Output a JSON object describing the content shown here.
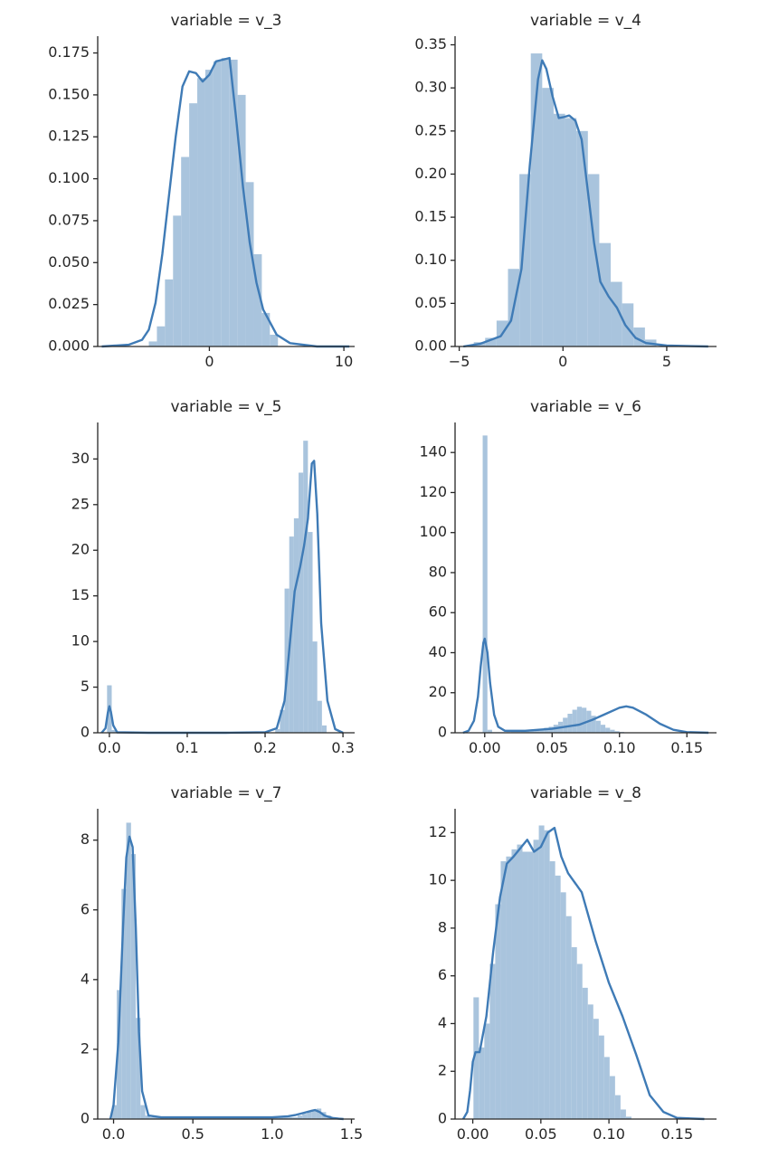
{
  "chart_data": [
    {
      "type": "histogram",
      "title": "variable = v_3",
      "xlim": [
        -8.3,
        10.8
      ],
      "ylim": [
        0,
        0.185
      ],
      "xticks": [
        0,
        10
      ],
      "xtick_labels": [
        "0",
        "10"
      ],
      "yticks": [
        0,
        0.025,
        0.05,
        0.075,
        0.1,
        0.125,
        0.15,
        0.175
      ],
      "ytick_labels": [
        "0.000",
        "0.025",
        "0.050",
        "0.075",
        "0.100",
        "0.125",
        "0.150",
        "0.175"
      ],
      "bins": {
        "start": -4.5,
        "width": 0.6,
        "heights": [
          0.003,
          0.012,
          0.04,
          0.078,
          0.113,
          0.145,
          0.16,
          0.165,
          0.17,
          0.172,
          0.171,
          0.15,
          0.098,
          0.055,
          0.02,
          0.007
        ]
      },
      "kde": {
        "x": [
          -8,
          -6,
          -5,
          -4.5,
          -4,
          -3.5,
          -3,
          -2.5,
          -2,
          -1.5,
          -1,
          -0.5,
          0,
          0.5,
          1,
          1.5,
          2,
          2.5,
          3,
          3.5,
          4,
          5,
          6,
          8,
          10.4
        ],
        "y": [
          0,
          0.001,
          0.004,
          0.01,
          0.026,
          0.055,
          0.09,
          0.125,
          0.155,
          0.164,
          0.163,
          0.158,
          0.162,
          0.17,
          0.171,
          0.172,
          0.135,
          0.095,
          0.062,
          0.038,
          0.022,
          0.007,
          0.002,
          0,
          0
        ]
      }
    },
    {
      "type": "histogram",
      "title": "variable = v_4",
      "xlim": [
        -5.2,
        7.4
      ],
      "ylim": [
        0,
        0.36
      ],
      "xticks": [
        -5,
        0,
        5
      ],
      "xtick_labels": [
        "−5",
        "0",
        "5"
      ],
      "yticks": [
        0,
        0.05,
        0.1,
        0.15,
        0.2,
        0.25,
        0.3,
        0.35
      ],
      "ytick_labels": [
        "0.00",
        "0.05",
        "0.10",
        "0.15",
        "0.20",
        "0.25",
        "0.30",
        "0.35"
      ],
      "bins": {
        "start": -4.3,
        "width": 0.55,
        "heights": [
          0.005,
          0.01,
          0.03,
          0.09,
          0.2,
          0.34,
          0.3,
          0.27,
          0.265,
          0.25,
          0.2,
          0.12,
          0.075,
          0.05,
          0.022,
          0.008
        ]
      },
      "kde": {
        "x": [
          -4.8,
          -4,
          -3,
          -2.5,
          -2,
          -1.6,
          -1.2,
          -1,
          -0.8,
          -0.5,
          -0.2,
          0,
          0.3,
          0.6,
          0.9,
          1.2,
          1.5,
          1.8,
          2.2,
          2.6,
          3,
          3.5,
          4,
          5,
          7
        ],
        "y": [
          0,
          0.003,
          0.012,
          0.03,
          0.09,
          0.21,
          0.31,
          0.332,
          0.322,
          0.29,
          0.265,
          0.266,
          0.268,
          0.262,
          0.24,
          0.18,
          0.12,
          0.075,
          0.058,
          0.045,
          0.025,
          0.01,
          0.004,
          0.001,
          0
        ]
      }
    },
    {
      "type": "histogram",
      "title": "variable = v_5",
      "xlim": [
        -0.015,
        0.315
      ],
      "ylim": [
        0,
        34
      ],
      "xticks": [
        0,
        0.1,
        0.2,
        0.3
      ],
      "xtick_labels": [
        "0.0",
        "0.1",
        "0.2",
        "0.3"
      ],
      "yticks": [
        0,
        5,
        10,
        15,
        20,
        25,
        30
      ],
      "ytick_labels": [
        "0",
        "5",
        "10",
        "15",
        "20",
        "25",
        "30"
      ],
      "bins": {
        "start": -0.003,
        "width": 0.006,
        "heights": [
          5.2,
          0.3,
          0,
          0,
          0,
          0,
          0,
          0,
          0,
          0,
          0,
          0,
          0,
          0,
          0,
          0,
          0,
          0,
          0,
          0,
          0,
          0,
          0,
          0,
          0,
          0,
          0,
          0,
          0,
          0,
          0,
          0,
          0,
          0,
          0,
          0,
          0.4,
          2.5,
          15.8,
          21.5,
          23.5,
          28.5,
          32,
          22,
          10,
          3.5,
          0.8,
          0
        ]
      },
      "kde": {
        "x": [
          -0.01,
          -0.005,
          -0.002,
          0,
          0.002,
          0.005,
          0.01,
          0.05,
          0.1,
          0.15,
          0.2,
          0.215,
          0.225,
          0.232,
          0.238,
          0.245,
          0.25,
          0.255,
          0.26,
          0.263,
          0.267,
          0.272,
          0.28,
          0.29,
          0.3
        ],
        "y": [
          0,
          0.5,
          2.2,
          2.9,
          2.3,
          0.8,
          0.05,
          0,
          0,
          0,
          0.05,
          0.5,
          3.5,
          10,
          15.5,
          18.2,
          20.5,
          23.5,
          29.5,
          29.8,
          24,
          12,
          3.5,
          0.4,
          0
        ]
      }
    },
    {
      "type": "histogram",
      "title": "variable = v_6",
      "xlim": [
        -0.022,
        0.172
      ],
      "ylim": [
        0,
        155
      ],
      "xticks": [
        0,
        0.05,
        0.1,
        0.15
      ],
      "xtick_labels": [
        "0.00",
        "0.05",
        "0.10",
        "0.15"
      ],
      "yticks": [
        0,
        20,
        40,
        60,
        80,
        100,
        120,
        140
      ],
      "ytick_labels": [
        "0",
        "20",
        "40",
        "60",
        "80",
        "100",
        "120",
        "140"
      ],
      "bins": {
        "start": -0.0015,
        "width": 0.0035,
        "heights": [
          148.5,
          1.5,
          0.3,
          0.3,
          0.3,
          0.4,
          0.5,
          0.6,
          0.8,
          1,
          1.3,
          1.6,
          2,
          2.5,
          3,
          4,
          5.5,
          7.5,
          9.5,
          11.5,
          13,
          12.5,
          11,
          8.5,
          6,
          4,
          2.5,
          1.5,
          0.8,
          0.4,
          0.2,
          0.1,
          0.1,
          0,
          0,
          0,
          0,
          0,
          0,
          0,
          0,
          0,
          0,
          0,
          0,
          0,
          0,
          0
        ]
      },
      "kde": {
        "x": [
          -0.016,
          -0.012,
          -0.008,
          -0.005,
          -0.003,
          -0.001,
          0,
          0.002,
          0.004,
          0.007,
          0.01,
          0.015,
          0.03,
          0.05,
          0.07,
          0.08,
          0.09,
          0.1,
          0.105,
          0.11,
          0.12,
          0.13,
          0.14,
          0.15,
          0.166
        ],
        "y": [
          0,
          1,
          6,
          18,
          33,
          45,
          47,
          40,
          25,
          9,
          3,
          1,
          1,
          2,
          4,
          6.5,
          9.5,
          12.5,
          13.2,
          12.5,
          9,
          4.5,
          1.5,
          0.3,
          0
        ]
      }
    },
    {
      "type": "histogram",
      "title": "variable = v_7",
      "xlim": [
        -0.1,
        1.52
      ],
      "ylim": [
        0,
        8.9
      ],
      "xticks": [
        0,
        0.5,
        1,
        1.5
      ],
      "xtick_labels": [
        "0.0",
        "0.5",
        "1.0",
        "1.5"
      ],
      "yticks": [
        0,
        2,
        4,
        6,
        8
      ],
      "ytick_labels": [
        "0",
        "2",
        "4",
        "6",
        "8"
      ],
      "bins": {
        "start": -0.01,
        "width": 0.03,
        "heights": [
          0.4,
          3.7,
          6.6,
          8.5,
          7.6,
          2.9,
          0.4,
          0.1,
          0.05,
          0.05,
          0.05,
          0.05,
          0.05,
          0.05,
          0.05,
          0.05,
          0.05,
          0.05,
          0.05,
          0.05,
          0.05,
          0.05,
          0.05,
          0.05,
          0.05,
          0.05,
          0.05,
          0.05,
          0.05,
          0.05,
          0.05,
          0.05,
          0.05,
          0.05,
          0.05,
          0.05,
          0.05,
          0.05,
          0.05,
          0.1,
          0.15,
          0.2,
          0.25,
          0.3,
          0.2,
          0.1
        ]
      },
      "kde": {
        "x": [
          -0.02,
          0,
          0.03,
          0.06,
          0.08,
          0.1,
          0.12,
          0.14,
          0.16,
          0.18,
          0.22,
          0.3,
          0.5,
          0.8,
          1,
          1.1,
          1.15,
          1.2,
          1.25,
          1.27,
          1.3,
          1.33,
          1.38,
          1.42,
          1.45
        ],
        "y": [
          0,
          0.4,
          2.2,
          5.5,
          7.5,
          8.1,
          7.8,
          5.5,
          2.5,
          0.8,
          0.1,
          0.05,
          0.05,
          0.05,
          0.05,
          0.08,
          0.12,
          0.18,
          0.24,
          0.26,
          0.2,
          0.1,
          0.03,
          0.01,
          0
        ]
      }
    },
    {
      "type": "histogram",
      "title": "variable = v_8",
      "xlim": [
        -0.013,
        0.179
      ],
      "ylim": [
        0,
        13
      ],
      "xticks": [
        0,
        0.05,
        0.1,
        0.15
      ],
      "xtick_labels": [
        "0.00",
        "0.05",
        "0.10",
        "0.15"
      ],
      "yticks": [
        0,
        2,
        4,
        6,
        8,
        10,
        12
      ],
      "ytick_labels": [
        "0",
        "2",
        "4",
        "6",
        "8",
        "10",
        "12"
      ],
      "bins": {
        "start": 0.0005,
        "width": 0.004,
        "heights": [
          5.1,
          3,
          4,
          6.5,
          9,
          10.8,
          11,
          11.3,
          11.5,
          11.2,
          11.2,
          11.7,
          12.3,
          12.1,
          10.8,
          10.2,
          9.5,
          8.5,
          7.2,
          6.5,
          5.5,
          4.8,
          4.2,
          3.5,
          2.6,
          1.8,
          1,
          0.4,
          0.1,
          0,
          0,
          0,
          0,
          0,
          0,
          0,
          0,
          0,
          0,
          0,
          0,
          0
        ]
      },
      "kde": {
        "x": [
          -0.007,
          -0.004,
          -0.002,
          0,
          0.002,
          0.005,
          0.01,
          0.015,
          0.02,
          0.025,
          0.03,
          0.04,
          0.045,
          0.05,
          0.055,
          0.06,
          0.065,
          0.07,
          0.08,
          0.09,
          0.1,
          0.11,
          0.12,
          0.13,
          0.14,
          0.15,
          0.17
        ],
        "y": [
          0,
          0.3,
          1.2,
          2.4,
          2.8,
          2.8,
          4.3,
          7,
          9.3,
          10.7,
          11,
          11.7,
          11.2,
          11.4,
          12,
          12.2,
          11,
          10.3,
          9.5,
          7.5,
          5.7,
          4.3,
          2.7,
          1,
          0.3,
          0.05,
          0
        ]
      }
    }
  ]
}
